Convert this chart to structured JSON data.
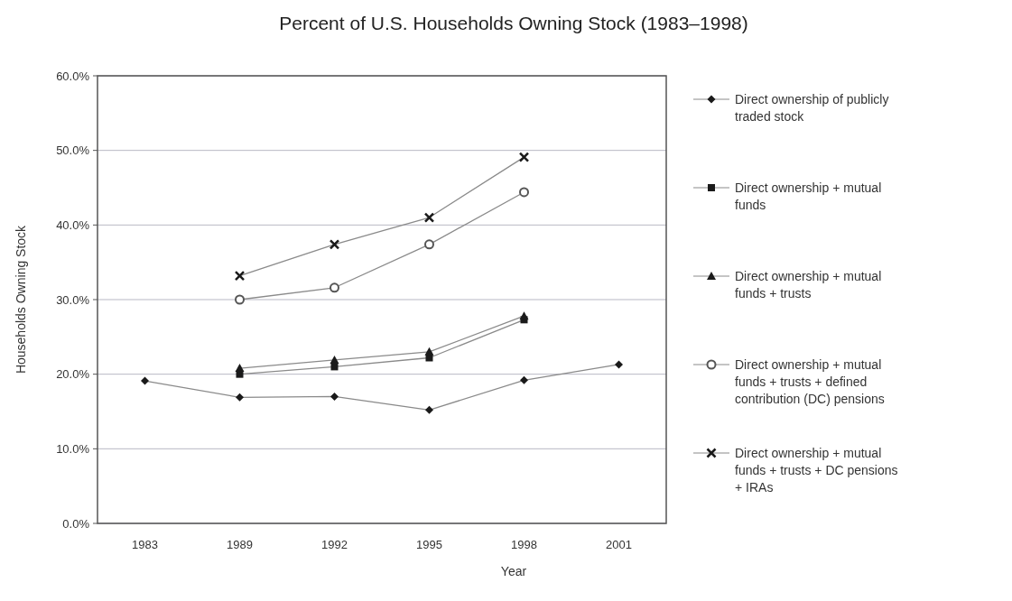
{
  "chart_data": {
    "type": "line",
    "title": "Percent of U.S. Households Owning Stock (1983–1998)",
    "xlabel": "Year",
    "ylabel": "Households Owning Stock",
    "categories": [
      "1983",
      "1989",
      "1992",
      "1995",
      "1998",
      "2001"
    ],
    "ylim": [
      0,
      60
    ],
    "yticks": [
      {
        "value": 0,
        "label": "0.0%"
      },
      {
        "value": 10,
        "label": "10.0%"
      },
      {
        "value": 20,
        "label": "20.0%"
      },
      {
        "value": 30,
        "label": "30.0%"
      },
      {
        "value": 40,
        "label": "40.0%"
      },
      {
        "value": 50,
        "label": "50.0%"
      },
      {
        "value": 60,
        "label": "60.0%"
      }
    ],
    "grid": "y",
    "legend": "right",
    "series": [
      {
        "name": "Direct ownership of publicly traded stock",
        "color": "#1a1a1a",
        "marker": "diamond",
        "values": [
          19.1,
          16.9,
          17.0,
          15.2,
          19.2,
          21.3
        ]
      },
      {
        "name": "Direct ownership + mutual funds",
        "color": "#1a1a1a",
        "marker": "square",
        "values": [
          null,
          20.0,
          21.0,
          22.2,
          27.3,
          null
        ]
      },
      {
        "name": "Direct ownership + mutual funds + trusts",
        "color": "#1a1a1a",
        "marker": "triangle",
        "values": [
          null,
          20.8,
          21.9,
          23.0,
          27.8,
          null
        ]
      },
      {
        "name": "Direct ownership + mutual funds + trusts + defined contribution (DC) pensions",
        "color": "#555555",
        "marker": "circle",
        "values": [
          null,
          30.0,
          31.6,
          37.4,
          44.4,
          null
        ]
      },
      {
        "name": "Direct ownership + mutual funds + trusts + DC pensions + IRAs",
        "color": "#1a1a1a",
        "marker": "cross",
        "values": [
          null,
          33.2,
          37.4,
          41.0,
          49.1,
          null
        ]
      }
    ]
  }
}
